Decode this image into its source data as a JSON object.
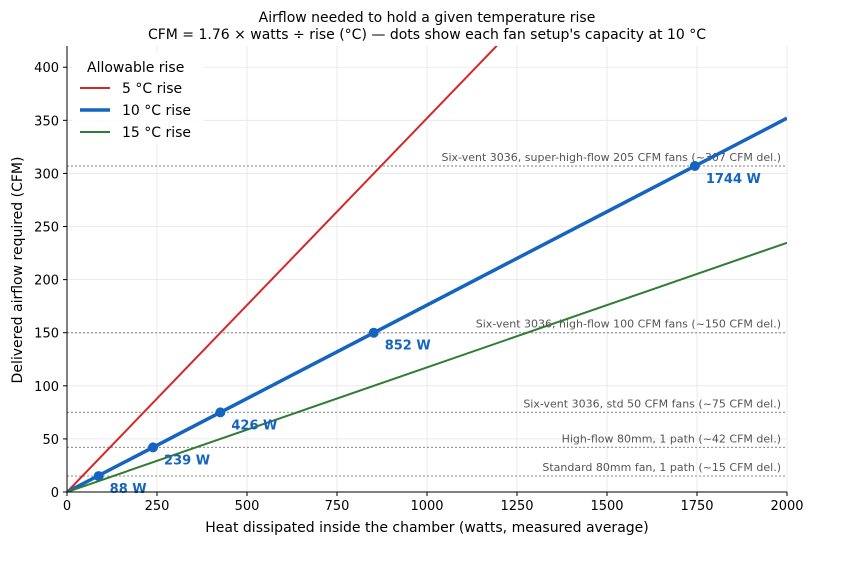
{
  "chart_data": {
    "type": "line",
    "title": "Airflow needed to hold a given temperature rise",
    "subtitle": "CFM = 1.76 × watts ÷ rise (°C) — dots show each fan setup's capacity at 10 °C",
    "xlabel": "Heat dissipated inside the chamber (watts, measured average)",
    "ylabel": "Delivered airflow required (CFM)",
    "xlim": [
      0,
      2000
    ],
    "ylim": [
      0,
      420
    ],
    "x_ticks": [
      0,
      250,
      500,
      750,
      1000,
      1250,
      1500,
      1750,
      2000
    ],
    "y_ticks": [
      0,
      50,
      100,
      150,
      200,
      250,
      300,
      350,
      400
    ],
    "grid": true,
    "legend": {
      "title": "Allowable rise",
      "placement": "top-left"
    },
    "series": [
      {
        "name": "5 °C rise",
        "color": "#d62728",
        "x": [
          0,
          2000
        ],
        "y": [
          0,
          704
        ]
      },
      {
        "name": "10 °C rise",
        "color": "#1565c0",
        "x": [
          0,
          2000
        ],
        "y": [
          0,
          352
        ]
      },
      {
        "name": "15 °C rise",
        "color": "#2e7d32",
        "x": [
          0,
          2000
        ],
        "y": [
          0,
          234.7
        ]
      }
    ],
    "reference_lines": [
      {
        "y": 307,
        "label": "Six-vent 3036, super-high-flow 205 CFM fans (~307 CFM del.)"
      },
      {
        "y": 150,
        "label": "Six-vent 3036, high-flow 100 CFM fans (~150 CFM del.)"
      },
      {
        "y": 75,
        "label": "Six-vent 3036, std 50 CFM fans (~75 CFM del.)"
      },
      {
        "y": 42,
        "label": "High-flow 80mm, 1 path (~42 CFM del.)"
      },
      {
        "y": 15,
        "label": "Standard 80mm fan, 1 path (~15 CFM del.)"
      }
    ],
    "points": [
      {
        "x": 88,
        "y": 15,
        "label": "88 W"
      },
      {
        "x": 239,
        "y": 42,
        "label": "239 W"
      },
      {
        "x": 426,
        "y": 75,
        "label": "426 W"
      },
      {
        "x": 852,
        "y": 150,
        "label": "852 W"
      },
      {
        "x": 1744,
        "y": 307,
        "label": "1744 W"
      }
    ],
    "colors": {
      "reference": "#999999",
      "reference_text": "#555555",
      "point": "#1565c0",
      "grid": "#e6e6e6"
    }
  }
}
